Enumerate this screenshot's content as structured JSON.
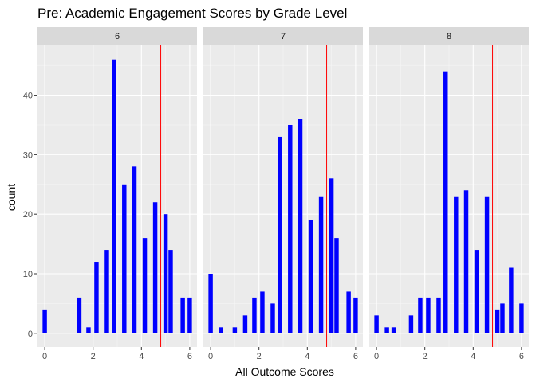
{
  "chart_data": {
    "type": "bar",
    "title": "Pre: Academic Engagement Scores by Grade Level",
    "xlabel": "All Outcome Scores",
    "ylabel": "count",
    "xlim": [
      -0.3,
      6.3
    ],
    "ylim": [
      -2.3,
      48.5
    ],
    "x_ticks": [
      0,
      2,
      4,
      6
    ],
    "y_ticks": [
      0,
      10,
      20,
      30,
      40
    ],
    "bar_width": 0.18,
    "grid": true,
    "reference_line": {
      "x": 4.8,
      "color": "#ff0000"
    },
    "bar_color": "#0000ff",
    "facets": [
      {
        "label": "6",
        "bars": [
          {
            "x": 0.0,
            "count": 4
          },
          {
            "x": 1.43,
            "count": 6
          },
          {
            "x": 1.81,
            "count": 1
          },
          {
            "x": 2.14,
            "count": 12
          },
          {
            "x": 2.57,
            "count": 14
          },
          {
            "x": 2.86,
            "count": 46
          },
          {
            "x": 3.29,
            "count": 25
          },
          {
            "x": 3.71,
            "count": 28
          },
          {
            "x": 4.14,
            "count": 16
          },
          {
            "x": 4.57,
            "count": 22
          },
          {
            "x": 5.0,
            "count": 20
          },
          {
            "x": 5.21,
            "count": 14
          },
          {
            "x": 5.71,
            "count": 6
          },
          {
            "x": 6.0,
            "count": 6
          }
        ]
      },
      {
        "label": "7",
        "bars": [
          {
            "x": 0.0,
            "count": 10
          },
          {
            "x": 0.43,
            "count": 1
          },
          {
            "x": 1.0,
            "count": 1
          },
          {
            "x": 1.43,
            "count": 3
          },
          {
            "x": 1.81,
            "count": 6
          },
          {
            "x": 2.14,
            "count": 7
          },
          {
            "x": 2.57,
            "count": 5
          },
          {
            "x": 2.86,
            "count": 33
          },
          {
            "x": 3.29,
            "count": 35
          },
          {
            "x": 3.71,
            "count": 36
          },
          {
            "x": 4.14,
            "count": 19
          },
          {
            "x": 4.57,
            "count": 23
          },
          {
            "x": 5.0,
            "count": 26
          },
          {
            "x": 5.21,
            "count": 16
          },
          {
            "x": 5.71,
            "count": 7
          },
          {
            "x": 6.0,
            "count": 6
          }
        ]
      },
      {
        "label": "8",
        "bars": [
          {
            "x": 0.0,
            "count": 3
          },
          {
            "x": 0.43,
            "count": 1
          },
          {
            "x": 0.71,
            "count": 1
          },
          {
            "x": 1.43,
            "count": 3
          },
          {
            "x": 1.81,
            "count": 6
          },
          {
            "x": 2.14,
            "count": 6
          },
          {
            "x": 2.57,
            "count": 6
          },
          {
            "x": 2.86,
            "count": 44
          },
          {
            "x": 3.29,
            "count": 23
          },
          {
            "x": 3.71,
            "count": 24
          },
          {
            "x": 4.14,
            "count": 14
          },
          {
            "x": 4.57,
            "count": 23
          },
          {
            "x": 5.0,
            "count": 4
          },
          {
            "x": 5.21,
            "count": 5
          },
          {
            "x": 5.57,
            "count": 11
          },
          {
            "x": 6.0,
            "count": 5
          }
        ]
      }
    ]
  }
}
